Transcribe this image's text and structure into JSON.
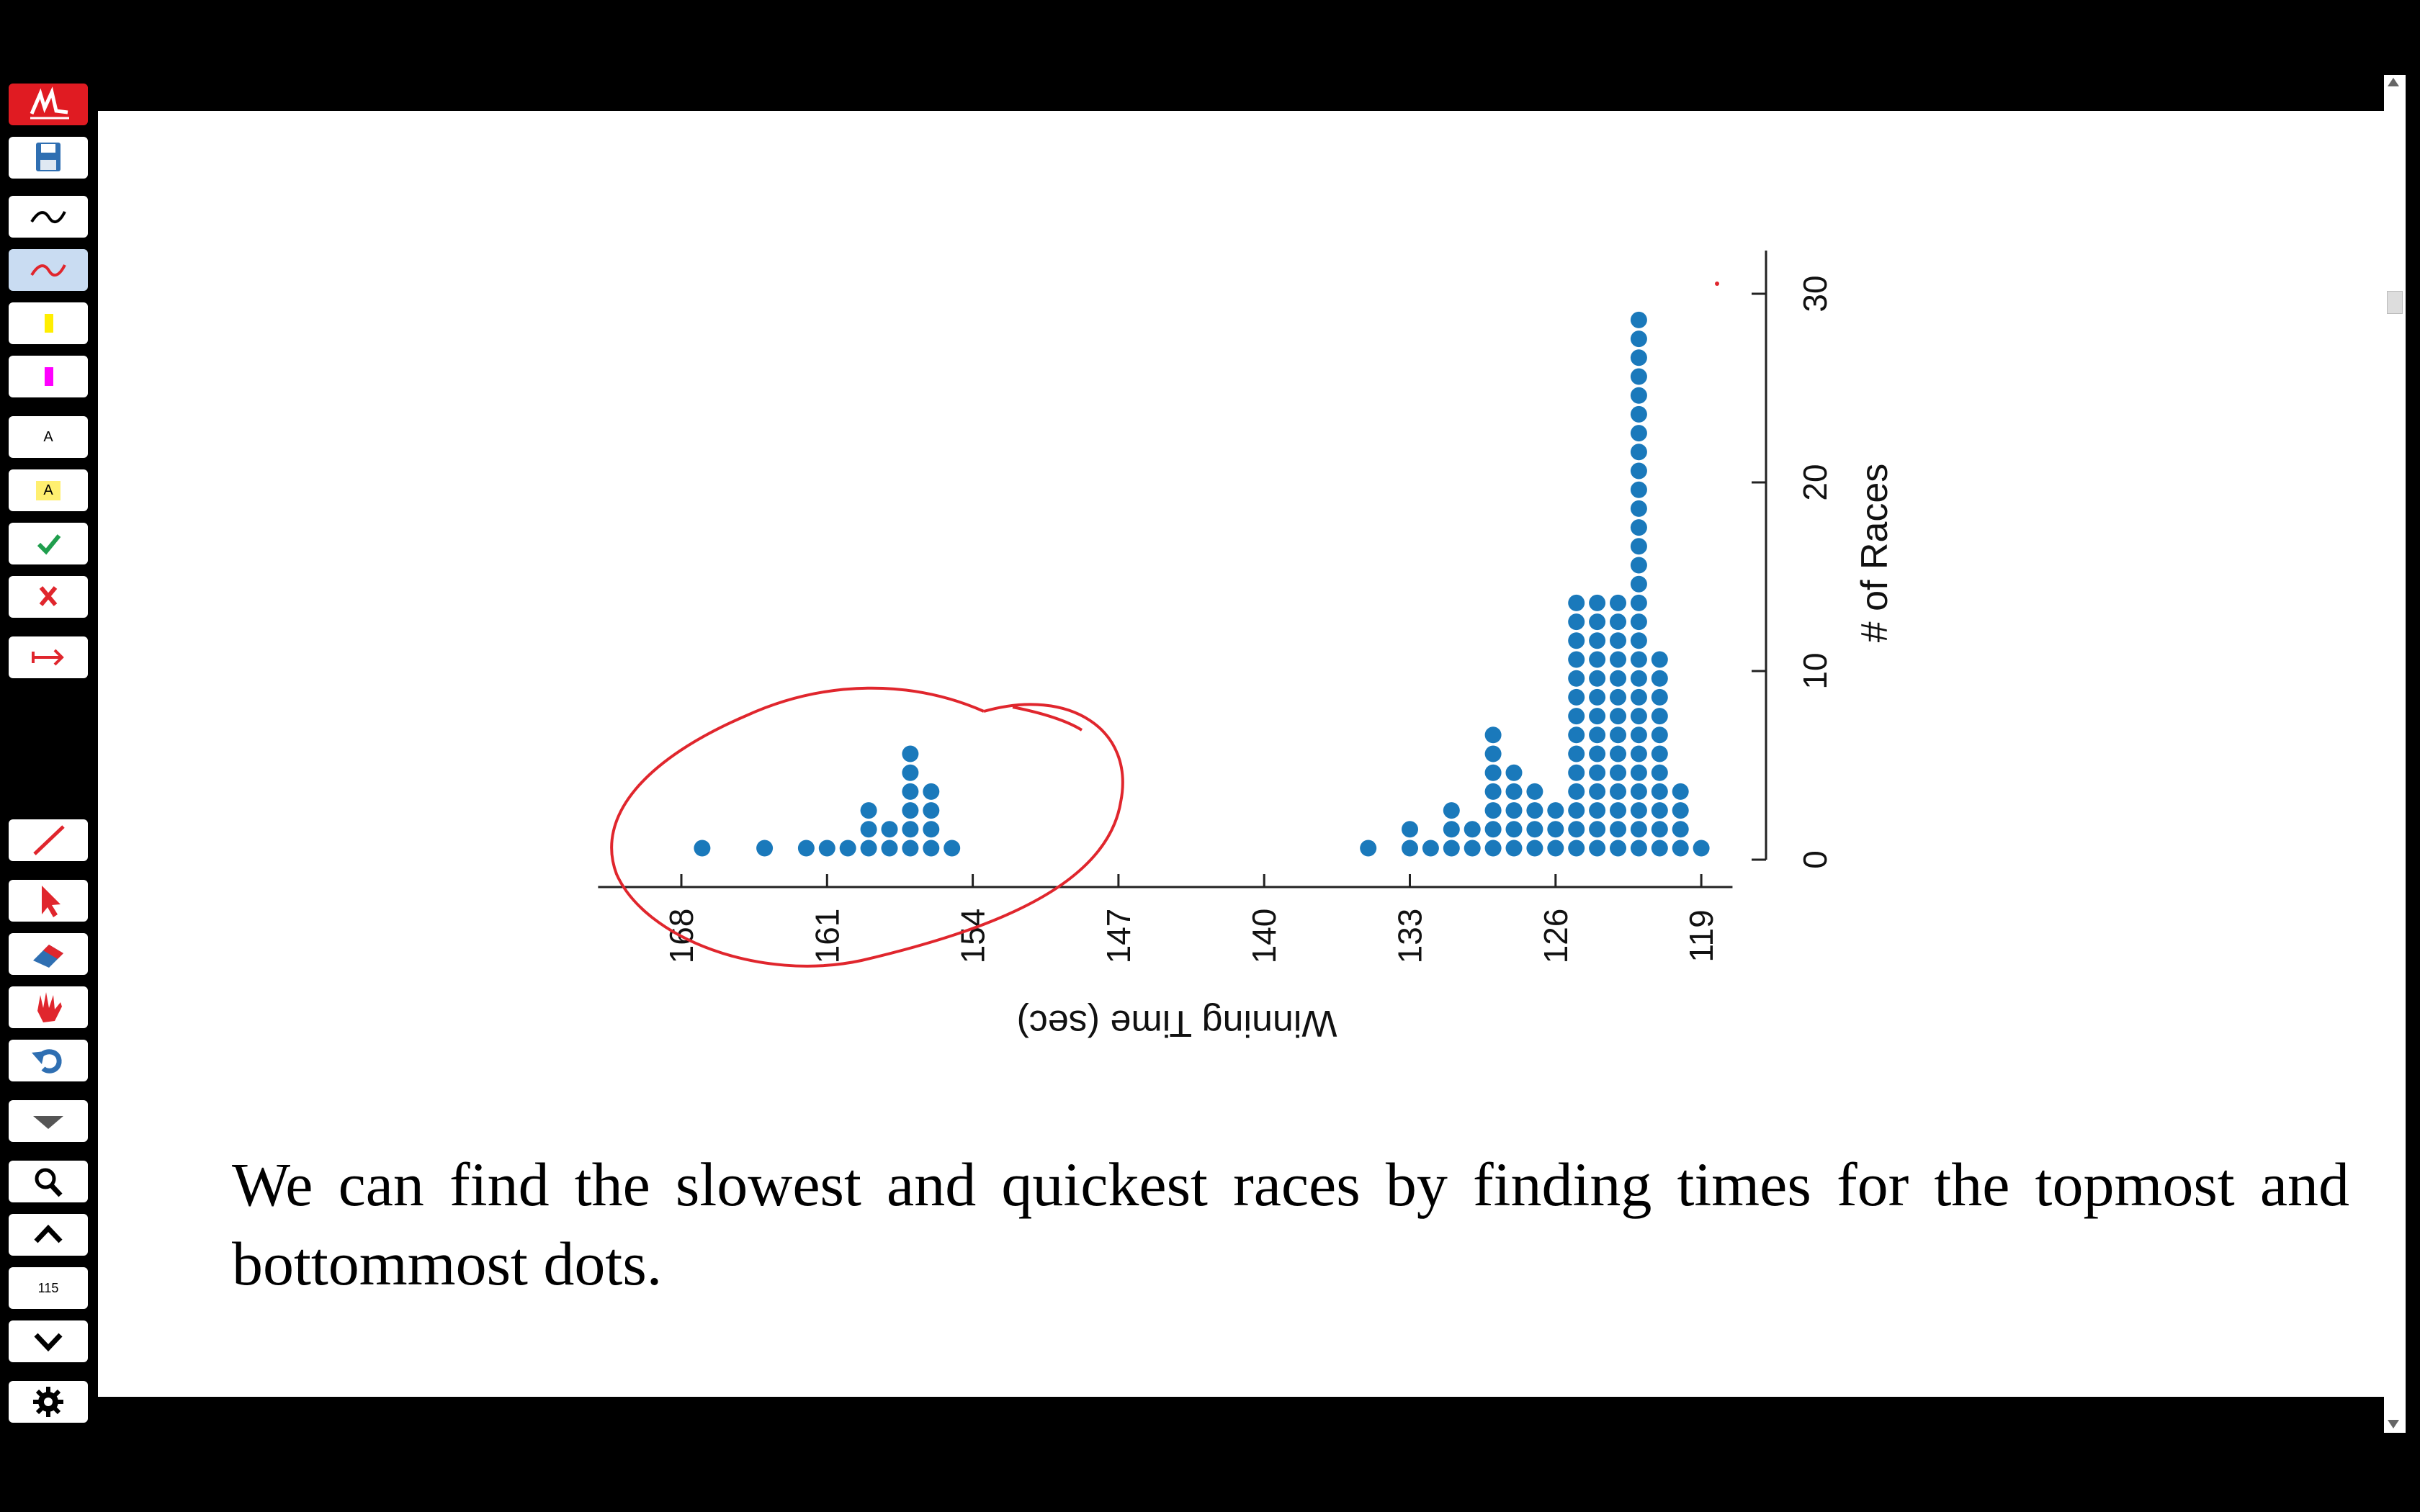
{
  "toolbar": {
    "text_tool_label": "A",
    "text_highlight_label": "A",
    "page_number": "115"
  },
  "colors": {
    "dot": "#1a79bb",
    "annotation": "#e0262d",
    "yellow": "#ffee00",
    "magenta": "#ff00ff"
  },
  "chart_data": {
    "type": "dot",
    "orientation": "rotated",
    "xlabel": "Winning Time (sec)",
    "ylabel": "# of Races",
    "x_ticks": [
      "168",
      "161",
      "154",
      "147",
      "140",
      "133",
      "126",
      "119"
    ],
    "y_ticks": [
      "0",
      "10",
      "20",
      "30"
    ],
    "xlim": [
      172,
      117.5
    ],
    "ylim": [
      0,
      30
    ],
    "points": [
      {
        "x": 167,
        "count": 1
      },
      {
        "x": 164,
        "count": 1
      },
      {
        "x": 162,
        "count": 1
      },
      {
        "x": 161,
        "count": 1
      },
      {
        "x": 160,
        "count": 1
      },
      {
        "x": 159,
        "count": 3
      },
      {
        "x": 158,
        "count": 2
      },
      {
        "x": 157,
        "count": 6
      },
      {
        "x": 156,
        "count": 4
      },
      {
        "x": 155,
        "count": 1
      },
      {
        "x": 135,
        "count": 1
      },
      {
        "x": 133,
        "count": 2
      },
      {
        "x": 132,
        "count": 1
      },
      {
        "x": 131,
        "count": 3
      },
      {
        "x": 130,
        "count": 2
      },
      {
        "x": 129,
        "count": 7
      },
      {
        "x": 128,
        "count": 5
      },
      {
        "x": 127,
        "count": 4
      },
      {
        "x": 126,
        "count": 3
      },
      {
        "x": 125,
        "count": 14
      },
      {
        "x": 124,
        "count": 14
      },
      {
        "x": 123,
        "count": 14
      },
      {
        "x": 122,
        "count": 29
      },
      {
        "x": 121,
        "count": 11
      },
      {
        "x": 120,
        "count": 4
      },
      {
        "x": 119,
        "count": 1
      }
    ]
  },
  "caption": "We can find the slowest and quickest races by finding times for the topmost and bottommost dots."
}
